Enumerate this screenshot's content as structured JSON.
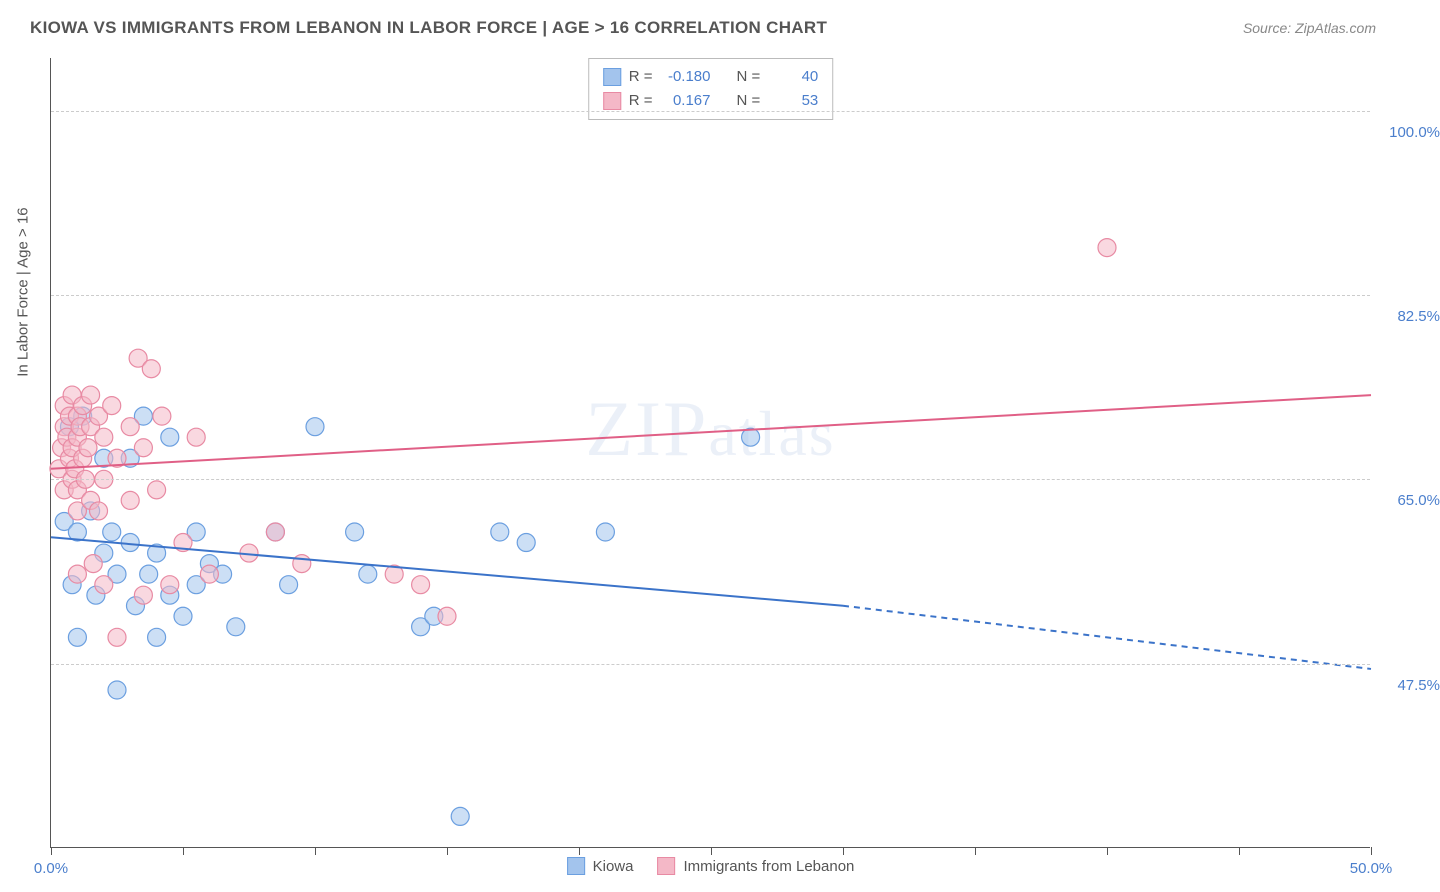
{
  "header": {
    "title": "KIOWA VS IMMIGRANTS FROM LEBANON IN LABOR FORCE | AGE > 16 CORRELATION CHART",
    "source": "Source: ZipAtlas.com"
  },
  "chart": {
    "type": "scatter",
    "y_axis_title": "In Labor Force | Age > 16",
    "watermark": "ZIPatlas",
    "background_color": "#ffffff",
    "grid_color": "#cccccc",
    "axis_color": "#555555",
    "xlim": [
      0,
      50
    ],
    "ylim": [
      30,
      105
    ],
    "x_ticks": [
      0,
      5,
      10,
      15,
      20,
      25,
      30,
      35,
      40,
      45,
      50
    ],
    "x_tick_labels": {
      "0": "0.0%",
      "50": "50.0%"
    },
    "y_gridlines": [
      47.5,
      65.0,
      82.5,
      100.0
    ],
    "y_tick_labels": [
      "47.5%",
      "65.0%",
      "82.5%",
      "100.0%"
    ],
    "series": [
      {
        "name": "Kiowa",
        "fill_color": "#a3c4ed",
        "stroke_color": "#6b9fe0",
        "fill_opacity": 0.55,
        "marker_radius": 9,
        "regression": {
          "color": "#3b73c9",
          "width": 2,
          "start": [
            0,
            59.5
          ],
          "solid_end": [
            30,
            53.0
          ],
          "dashed_end": [
            50,
            47.0
          ]
        },
        "correlation": {
          "R_label": "R =",
          "R": "-0.180",
          "N_label": "N =",
          "N": "40"
        },
        "points": [
          [
            0.5,
            61
          ],
          [
            0.7,
            70
          ],
          [
            0.8,
            55
          ],
          [
            1.0,
            60
          ],
          [
            1.0,
            50
          ],
          [
            1.2,
            71
          ],
          [
            1.5,
            62
          ],
          [
            1.7,
            54
          ],
          [
            2.0,
            58
          ],
          [
            2.0,
            67
          ],
          [
            2.3,
            60
          ],
          [
            2.5,
            45
          ],
          [
            2.5,
            56
          ],
          [
            3.0,
            59
          ],
          [
            3.0,
            67
          ],
          [
            3.2,
            53
          ],
          [
            3.5,
            71
          ],
          [
            3.7,
            56
          ],
          [
            4.0,
            50
          ],
          [
            4.0,
            58
          ],
          [
            4.5,
            54
          ],
          [
            4.5,
            69
          ],
          [
            5.0,
            52
          ],
          [
            5.5,
            55
          ],
          [
            5.5,
            60
          ],
          [
            6.0,
            57
          ],
          [
            6.5,
            56
          ],
          [
            7.0,
            51
          ],
          [
            8.5,
            60
          ],
          [
            9.0,
            55
          ],
          [
            10.0,
            70
          ],
          [
            11.5,
            60
          ],
          [
            12.0,
            56
          ],
          [
            14.0,
            51
          ],
          [
            14.5,
            52
          ],
          [
            15.5,
            33
          ],
          [
            17.0,
            60
          ],
          [
            18.0,
            59
          ],
          [
            21.0,
            60
          ],
          [
            26.5,
            69
          ]
        ]
      },
      {
        "name": "Immigrants from Lebanon",
        "fill_color": "#f4b8c7",
        "stroke_color": "#e88aa3",
        "fill_opacity": 0.55,
        "marker_radius": 9,
        "regression": {
          "color": "#e05f86",
          "width": 2,
          "start": [
            0,
            66.0
          ],
          "solid_end": [
            50,
            73.0
          ],
          "dashed_end": null
        },
        "correlation": {
          "R_label": "R =",
          "R": "0.167",
          "N_label": "N =",
          "N": "53"
        },
        "points": [
          [
            0.3,
            66
          ],
          [
            0.4,
            68
          ],
          [
            0.5,
            70
          ],
          [
            0.5,
            64
          ],
          [
            0.5,
            72
          ],
          [
            0.6,
            69
          ],
          [
            0.7,
            67
          ],
          [
            0.7,
            71
          ],
          [
            0.8,
            65
          ],
          [
            0.8,
            68
          ],
          [
            0.8,
            73
          ],
          [
            0.9,
            66
          ],
          [
            1.0,
            69
          ],
          [
            1.0,
            64
          ],
          [
            1.0,
            71
          ],
          [
            1.0,
            56
          ],
          [
            1.0,
            62
          ],
          [
            1.1,
            70
          ],
          [
            1.2,
            67
          ],
          [
            1.2,
            72
          ],
          [
            1.3,
            65
          ],
          [
            1.4,
            68
          ],
          [
            1.5,
            63
          ],
          [
            1.5,
            70
          ],
          [
            1.5,
            73
          ],
          [
            1.6,
            57
          ],
          [
            1.8,
            71
          ],
          [
            1.8,
            62
          ],
          [
            2.0,
            69
          ],
          [
            2.0,
            55
          ],
          [
            2.0,
            65
          ],
          [
            2.3,
            72
          ],
          [
            2.5,
            67
          ],
          [
            2.5,
            50
          ],
          [
            3.0,
            70
          ],
          [
            3.0,
            63
          ],
          [
            3.3,
            76.5
          ],
          [
            3.5,
            68
          ],
          [
            3.5,
            54
          ],
          [
            3.8,
            75.5
          ],
          [
            4.0,
            64
          ],
          [
            4.2,
            71
          ],
          [
            4.5,
            55
          ],
          [
            5.0,
            59
          ],
          [
            5.5,
            69
          ],
          [
            6.0,
            56
          ],
          [
            7.5,
            58
          ],
          [
            8.5,
            60
          ],
          [
            9.5,
            57
          ],
          [
            13.0,
            56
          ],
          [
            14.0,
            55
          ],
          [
            15.0,
            52
          ],
          [
            40.0,
            87
          ]
        ]
      }
    ],
    "correlation_box": {
      "bg": "#ffffff",
      "border": "#bbbbbb",
      "text_color": "#555555",
      "value_color": "#4a7ecc"
    },
    "tick_label_color": "#4a7ecc",
    "tick_label_fontsize": 15,
    "title_fontsize": 17
  }
}
